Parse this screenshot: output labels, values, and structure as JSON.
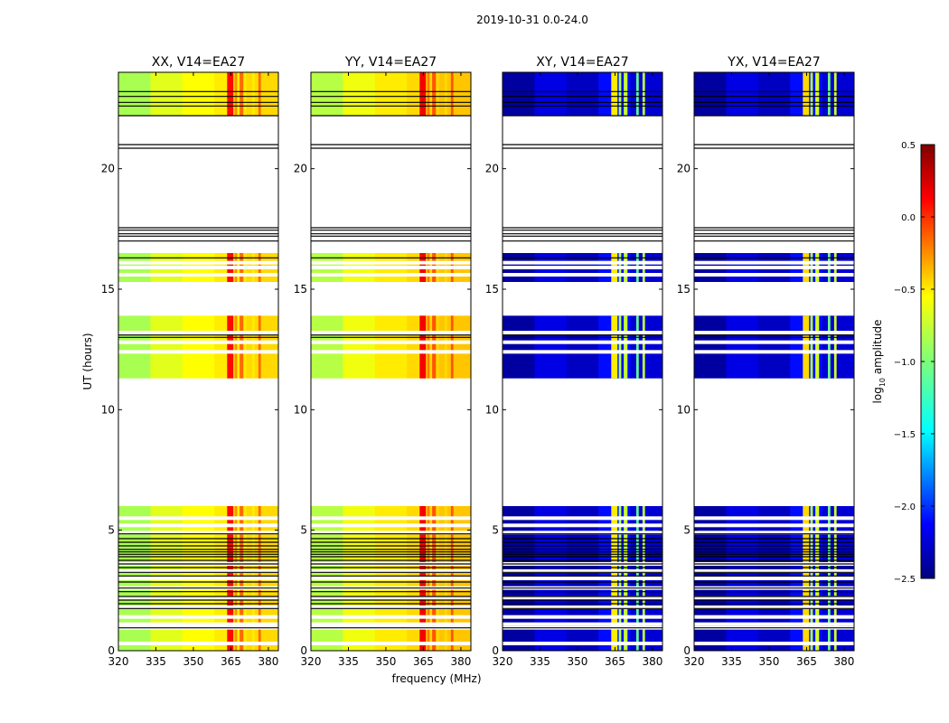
{
  "chart_data": {
    "type": "heatmap",
    "suptitle": "2019-10-31 0.0-24.0",
    "xlabel": "frequency (MHz)",
    "ylabel": "UT (hours)",
    "xlim": [
      320,
      384
    ],
    "ylim": [
      0,
      24
    ],
    "x_ticks": [
      320,
      335,
      350,
      365,
      380
    ],
    "y_ticks": [
      0,
      5,
      10,
      15,
      20
    ],
    "colorbar": {
      "label": "log10 amplitude",
      "label_main": "log",
      "label_sub": "10",
      "label_rest": " amplitude",
      "range": [
        -2.5,
        0.5
      ],
      "ticks": [
        "0.5",
        "0.0",
        "−0.5",
        "−1.0",
        "−1.5",
        "−2.0",
        "−2.5"
      ],
      "tick_values": [
        0.5,
        0.0,
        -0.5,
        -1.0,
        -1.5,
        -2.0,
        -2.5
      ],
      "colormap": "jet"
    },
    "data_blocks_ut": [
      [
        0,
        6.0
      ],
      [
        11.3,
        13.9
      ],
      [
        15.3,
        16.5
      ]
    ],
    "blank_line_ut": [
      0.3,
      0.95,
      1.1,
      1.4,
      1.8,
      2.2,
      2.6,
      3.0,
      3.3,
      3.6,
      4.9,
      5.2,
      5.5,
      12.4,
      12.8,
      13.2,
      15.6,
      15.9,
      16.1
    ],
    "top_block_ut": [
      22.2,
      24.0
    ],
    "flag_line_ut": [
      0.95,
      1.75,
      1.95,
      2.1,
      2.25,
      2.45,
      2.6,
      2.85,
      3.1,
      3.25,
      3.45,
      3.6,
      3.75,
      3.9,
      4.0,
      4.1,
      4.2,
      4.35,
      4.5,
      4.65,
      4.85,
      13.0,
      13.1,
      16.3,
      17.0,
      17.2,
      17.3,
      17.45,
      17.55,
      20.85,
      21.0,
      22.2,
      22.6,
      22.75,
      23.0,
      23.2
    ],
    "rfi_channels_mhz": [
      [
        363.5,
        366.0
      ],
      [
        366.5,
        367.5
      ],
      [
        368.5,
        370.0
      ],
      [
        373.5,
        374.5
      ],
      [
        376.0,
        377.0
      ]
    ],
    "panels": [
      {
        "title": "XX, V14=EA27",
        "level": -0.55,
        "rfi_level": 0.1,
        "band_levels": [
          -0.85,
          -0.65,
          -0.55,
          -0.5,
          -0.45
        ]
      },
      {
        "title": "YY, V14=EA27",
        "level": -0.5,
        "rfi_level": 0.15,
        "band_levels": [
          -0.8,
          -0.6,
          -0.5,
          -0.45,
          -0.4
        ]
      },
      {
        "title": "XY, V14=EA27",
        "level": -2.3,
        "rfi_level": -0.5,
        "band_levels": [
          -2.4,
          -2.2,
          -2.3,
          -2.1,
          -2.25
        ]
      },
      {
        "title": "YX, V14=EA27",
        "level": -2.3,
        "rfi_level": -0.45,
        "band_levels": [
          -2.4,
          -2.2,
          -2.3,
          -2.1,
          -2.25
        ]
      }
    ]
  }
}
